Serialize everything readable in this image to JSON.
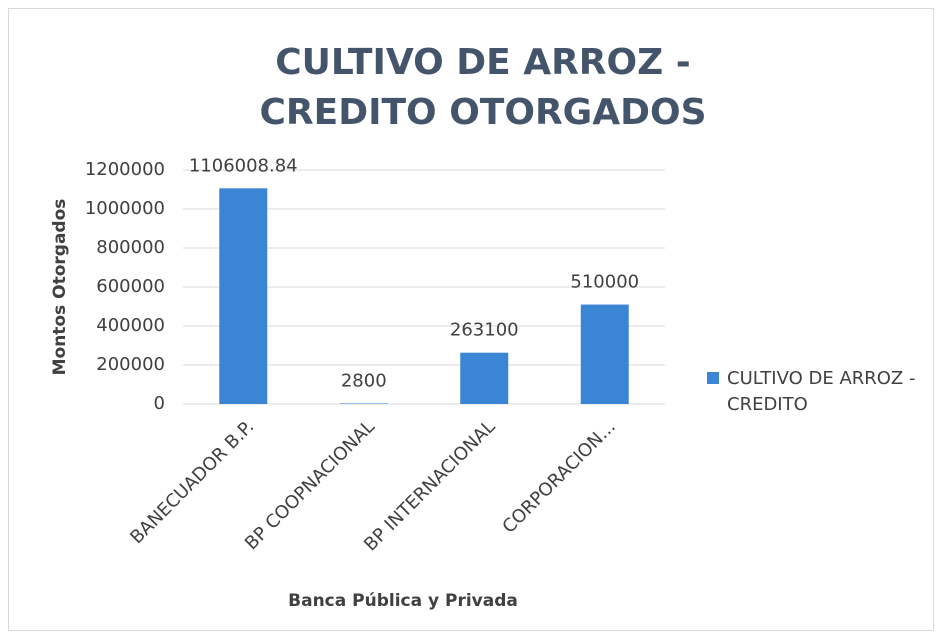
{
  "chart_data": {
    "type": "bar",
    "title": "CULTIVO DE ARROZ - CREDITO OTORGADOS",
    "x_label": "Banca Pública y Privada",
    "y_label": "Montos Otorgados",
    "categories": [
      "BANECUADOR B.P.",
      "BP COOPNACIONAL",
      "BP INTERNACIONAL",
      "CORPORACION..."
    ],
    "series": [
      {
        "name": "CULTIVO DE ARROZ - CREDITO",
        "color": "#3a86d4",
        "values": [
          1106008.84,
          2800,
          263100,
          510000
        ]
      }
    ],
    "ylim": [
      0,
      1200000
    ],
    "yticks": [
      0,
      200000,
      400000,
      600000,
      800000,
      1000000,
      1200000
    ],
    "grid": true,
    "legend": "right"
  }
}
